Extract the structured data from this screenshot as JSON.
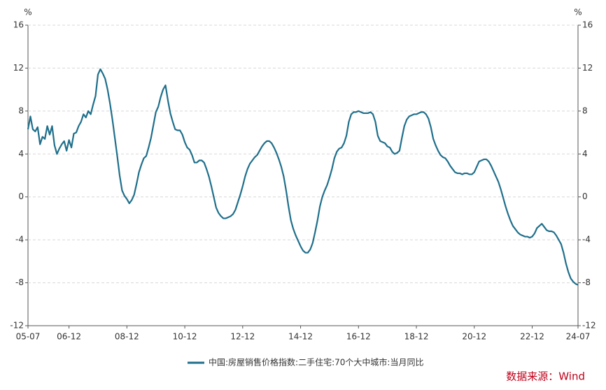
{
  "chart_data": {
    "type": "line",
    "y_label": "%",
    "y2_label": "%",
    "categories": [
      "05-07",
      null,
      null,
      null,
      null,
      null,
      null,
      null,
      null,
      null,
      null,
      null,
      null,
      null,
      null,
      null,
      null,
      "06-12",
      null,
      null,
      null,
      null,
      null,
      null,
      null,
      null,
      null,
      null,
      null,
      null,
      null,
      null,
      null,
      null,
      null,
      null,
      null,
      null,
      null,
      null,
      null,
      "08-12",
      null,
      null,
      null,
      null,
      null,
      null,
      null,
      null,
      null,
      null,
      null,
      null,
      null,
      null,
      null,
      null,
      null,
      null,
      null,
      null,
      null,
      null,
      null,
      "10-12",
      null,
      null,
      null,
      null,
      null,
      null,
      null,
      null,
      null,
      null,
      null,
      null,
      null,
      null,
      null,
      null,
      null,
      null,
      null,
      null,
      null,
      null,
      null,
      "12-12",
      null,
      null,
      null,
      null,
      null,
      null,
      null,
      null,
      null,
      null,
      null,
      null,
      null,
      null,
      null,
      null,
      null,
      null,
      null,
      null,
      null,
      null,
      null,
      "14-12",
      null,
      null,
      null,
      null,
      null,
      null,
      null,
      null,
      null,
      null,
      null,
      null,
      null,
      null,
      null,
      null,
      null,
      null,
      null,
      null,
      null,
      null,
      null,
      "16-12",
      null,
      null,
      null,
      null,
      null,
      null,
      null,
      null,
      null,
      null,
      null,
      null,
      null,
      null,
      null,
      null,
      null,
      null,
      null,
      null,
      null,
      null,
      null,
      "18-12",
      null,
      null,
      null,
      null,
      null,
      null,
      null,
      null,
      null,
      null,
      null,
      null,
      null,
      null,
      null,
      null,
      null,
      null,
      null,
      null,
      null,
      null,
      null,
      "20-12",
      null,
      null,
      null,
      null,
      null,
      null,
      null,
      null,
      null,
      null,
      null,
      null,
      null,
      null,
      null,
      null,
      null,
      null,
      null,
      null,
      null,
      null,
      null,
      "22-12",
      null,
      null,
      null,
      null,
      null,
      null,
      null,
      null,
      null,
      null,
      null,
      null,
      null,
      null,
      null,
      null,
      null,
      null,
      "24-07"
    ],
    "series": [
      {
        "name": "中国:房屋销售价格指数:二手住宅:70个大中城市:当月同比",
        "color": "#1f6f8b",
        "values": [
          6.3,
          7.5,
          6.3,
          6.1,
          6.5,
          4.9,
          5.6,
          5.4,
          6.6,
          5.8,
          6.6,
          4.8,
          4.0,
          4.5,
          4.9,
          5.2,
          4.3,
          5.3,
          4.6,
          5.9,
          6.0,
          6.6,
          7.0,
          7.7,
          7.4,
          8.0,
          7.7,
          8.6,
          9.4,
          11.4,
          11.9,
          11.5,
          11.0,
          10.0,
          8.7,
          7.2,
          5.5,
          3.8,
          2.0,
          0.6,
          0.1,
          -0.2,
          -0.6,
          -0.3,
          0.2,
          1.2,
          2.3,
          3.0,
          3.6,
          3.8,
          4.6,
          5.5,
          6.7,
          7.9,
          8.4,
          9.3,
          10.0,
          10.4,
          9.0,
          7.8,
          7.0,
          6.3,
          6.2,
          6.2,
          5.8,
          5.1,
          4.6,
          4.4,
          3.9,
          3.2,
          3.2,
          3.4,
          3.4,
          3.2,
          2.6,
          1.9,
          1.0,
          0.0,
          -1.0,
          -1.5,
          -1.8,
          -2.0,
          -2.0,
          -1.9,
          -1.8,
          -1.6,
          -1.2,
          -0.5,
          0.2,
          1.0,
          1.9,
          2.6,
          3.1,
          3.4,
          3.7,
          3.9,
          4.3,
          4.7,
          5.0,
          5.2,
          5.2,
          5.0,
          4.6,
          4.1,
          3.5,
          2.8,
          1.9,
          0.6,
          -0.9,
          -2.2,
          -3.0,
          -3.6,
          -4.1,
          -4.6,
          -5.0,
          -5.2,
          -5.2,
          -4.9,
          -4.3,
          -3.3,
          -2.2,
          -0.9,
          0.0,
          0.6,
          1.1,
          1.8,
          2.6,
          3.6,
          4.2,
          4.5,
          4.6,
          5.0,
          5.7,
          7.0,
          7.7,
          7.9,
          7.9,
          8.0,
          7.9,
          7.8,
          7.8,
          7.8,
          7.9,
          7.7,
          7.0,
          5.7,
          5.2,
          5.1,
          5.0,
          4.7,
          4.6,
          4.2,
          4.0,
          4.1,
          4.3,
          5.5,
          6.6,
          7.2,
          7.5,
          7.6,
          7.7,
          7.7,
          7.8,
          7.9,
          7.9,
          7.7,
          7.3,
          6.5,
          5.4,
          4.8,
          4.3,
          3.9,
          3.7,
          3.6,
          3.3,
          2.9,
          2.6,
          2.3,
          2.2,
          2.2,
          2.1,
          2.2,
          2.2,
          2.1,
          2.1,
          2.3,
          2.8,
          3.3,
          3.4,
          3.5,
          3.5,
          3.3,
          2.9,
          2.4,
          1.9,
          1.4,
          0.7,
          -0.1,
          -0.9,
          -1.6,
          -2.2,
          -2.7,
          -3.0,
          -3.3,
          -3.5,
          -3.6,
          -3.7,
          -3.7,
          -3.8,
          -3.7,
          -3.4,
          -2.9,
          -2.7,
          -2.5,
          -2.8,
          -3.1,
          -3.2,
          -3.2,
          -3.3,
          -3.6,
          -4.0,
          -4.4,
          -5.2,
          -6.2,
          -7.0,
          -7.6,
          -7.9,
          -8.1,
          -8.2
        ]
      }
    ],
    "ylim": [
      -12,
      16
    ],
    "yticks": [
      -12,
      -8,
      -4,
      0,
      4,
      8,
      12,
      16
    ],
    "y2lim": [
      -12,
      16
    ],
    "y2ticks": [
      -12,
      -8,
      -4,
      0,
      4,
      8,
      12,
      16
    ],
    "grid": true,
    "source": "数据来源：Wind"
  }
}
